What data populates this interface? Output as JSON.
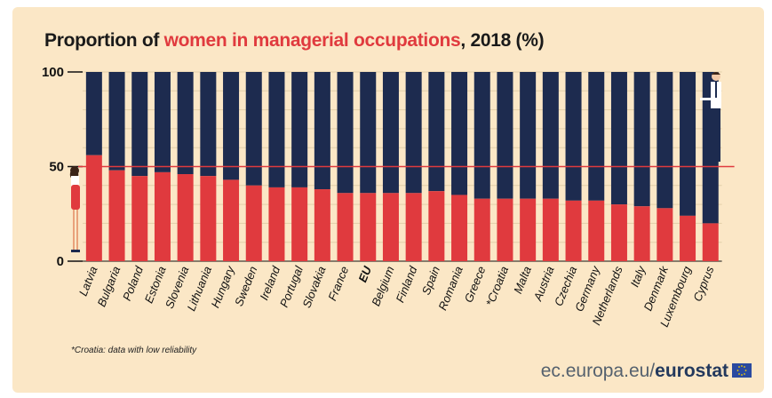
{
  "title": {
    "prefix": "Proportion of ",
    "highlight": "women in managerial occupations",
    "suffix": ", 2018 (%)"
  },
  "footnote": "*Croatia: data with low reliability",
  "source": {
    "domain": "ec.europa.eu/",
    "brand": "eurostat"
  },
  "colors": {
    "women": "#e03a3e",
    "men": "#1d2b4f",
    "background": "#fbe7c6",
    "highlight": "#e03a3e"
  },
  "icons": [
    "woman-figure-icon",
    "man-figure-icon",
    "eu-flag-icon"
  ],
  "chart_data": {
    "type": "bar",
    "stacked": true,
    "categories": [
      "Latvia",
      "Bulgaria",
      "Poland",
      "Estonia",
      "Slovenia",
      "Lithuania",
      "Hungary",
      "Sweden",
      "Ireland",
      "Portugal",
      "Slovakia",
      "France",
      "EU",
      "Belgium",
      "Finland",
      "Spain",
      "Romania",
      "Greece",
      "*Croatia",
      "Malta",
      "Austria",
      "Czechia",
      "Germany",
      "Netherlands",
      "Italy",
      "Denmark",
      "Luxembourg",
      "Cyprus"
    ],
    "values": [
      56,
      48,
      45,
      47,
      46,
      45,
      43,
      40,
      39,
      39,
      38,
      36,
      36,
      36,
      36,
      37,
      35,
      33,
      33,
      33,
      33,
      32,
      32,
      30,
      29,
      28,
      24,
      20
    ],
    "values_note": "red segment = share of women; remainder to 100 shown in dark blue",
    "ylim": [
      0,
      100
    ],
    "yticks": [
      0,
      50,
      100
    ],
    "reference_line": 50,
    "highlighted_category": "EU",
    "grid": true
  }
}
